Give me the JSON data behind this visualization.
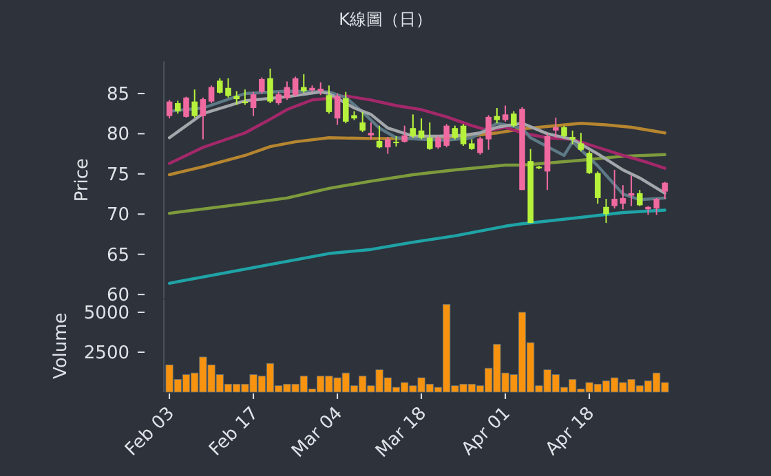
{
  "chart_data": [
    {
      "type": "candlestick",
      "title": "K線圖（日）",
      "ylabel": "Price",
      "categories": [
        null,
        null,
        null,
        null,
        null,
        null,
        null,
        null,
        null,
        null,
        null,
        null,
        null,
        null,
        null,
        null,
        null,
        null,
        null,
        null,
        null,
        null,
        null,
        null,
        null,
        null,
        null,
        null,
        null,
        null,
        null,
        null,
        null,
        null,
        null,
        null,
        null,
        null,
        null,
        null,
        null,
        null,
        null,
        null,
        null,
        null,
        null,
        null,
        null,
        null,
        null,
        null,
        null,
        null,
        null,
        null,
        null,
        null,
        null,
        null
      ],
      "ohlc": [
        [
          82.2,
          84.2,
          81.9,
          84.0
        ],
        [
          83.8,
          84.1,
          82.5,
          82.8
        ],
        [
          82.1,
          84.6,
          82.0,
          84.5
        ],
        [
          84.0,
          85.5,
          82.0,
          82.2
        ],
        [
          82.2,
          84.5,
          79.3,
          84.3
        ],
        [
          84.0,
          86.0,
          83.8,
          85.8
        ],
        [
          86.6,
          86.9,
          85.0,
          85.1
        ],
        [
          85.7,
          86.9,
          84.5,
          84.7
        ],
        [
          84.7,
          85.3,
          83.6,
          84.3
        ],
        [
          84.0,
          85.5,
          83.6,
          83.8
        ],
        [
          83.2,
          85.2,
          82.2,
          84.9
        ],
        [
          85.2,
          87.0,
          85.0,
          86.8
        ],
        [
          86.9,
          88.1,
          83.8,
          84.0
        ],
        [
          83.8,
          85.2,
          83.6,
          84.9
        ],
        [
          84.4,
          86.5,
          84.2,
          85.8
        ],
        [
          84.8,
          87.1,
          84.6,
          86.9
        ],
        [
          85.8,
          87.4,
          85.1,
          85.3
        ],
        [
          85.4,
          86.0,
          85.2,
          85.7
        ],
        [
          85.3,
          86.4,
          84.8,
          85.6
        ],
        [
          84.8,
          86.0,
          82.5,
          82.7
        ],
        [
          81.9,
          85.0,
          81.1,
          84.7
        ],
        [
          84.4,
          85.2,
          81.3,
          81.5
        ],
        [
          82.3,
          82.8,
          81.7,
          81.9
        ],
        [
          81.4,
          82.7,
          80.2,
          80.4
        ],
        [
          79.8,
          81.4,
          79.3,
          80.1
        ],
        [
          79.1,
          81.0,
          78.2,
          78.3
        ],
        [
          78.3,
          79.6,
          77.5,
          79.3
        ],
        [
          79.0,
          79.7,
          78.4,
          78.9
        ],
        [
          79.0,
          81.0,
          78.9,
          79.8
        ],
        [
          80.7,
          82.4,
          79.5,
          79.7
        ],
        [
          80.4,
          81.9,
          79.3,
          79.5
        ],
        [
          79.5,
          81.4,
          78.0,
          78.1
        ],
        [
          78.3,
          79.8,
          78.1,
          79.5
        ],
        [
          78.5,
          81.2,
          78.3,
          81.0
        ],
        [
          80.7,
          81.0,
          79.3,
          79.5
        ],
        [
          81.0,
          81.2,
          78.5,
          78.7
        ],
        [
          78.8,
          79.3,
          78.0,
          78.1
        ],
        [
          77.6,
          79.6,
          77.4,
          79.4
        ],
        [
          79.3,
          82.3,
          78.0,
          82.1
        ],
        [
          82.2,
          83.2,
          81.3,
          81.7
        ],
        [
          81.7,
          83.5,
          81.5,
          82.4
        ],
        [
          82.5,
          82.8,
          80.8,
          81.0
        ],
        [
          73.0,
          83.3,
          73.0,
          83.1
        ],
        [
          76.6,
          78.1,
          68.9,
          68.9
        ],
        [
          75.9,
          76.0,
          75.6,
          75.7
        ],
        [
          75.3,
          80.0,
          73.0,
          79.7
        ],
        [
          80.4,
          82.0,
          79.5,
          80.8
        ],
        [
          80.8,
          81.0,
          79.5,
          79.7
        ],
        [
          79.6,
          80.4,
          78.7,
          79.3
        ],
        [
          78.8,
          80.1,
          77.8,
          78.0
        ],
        [
          77.6,
          77.8,
          75.0,
          75.1
        ],
        [
          75.1,
          75.3,
          71.3,
          72.0
        ],
        [
          70.9,
          71.9,
          68.9,
          70.0
        ],
        [
          71.0,
          75.5,
          70.7,
          71.9
        ],
        [
          71.3,
          73.6,
          70.6,
          72.0
        ],
        [
          72.3,
          74.8,
          71.0,
          72.6
        ],
        [
          72.6,
          73.0,
          71.0,
          71.1
        ],
        [
          70.6,
          71.0,
          69.9,
          70.9
        ],
        [
          70.7,
          72.0,
          69.9,
          71.9
        ],
        [
          72.8,
          74.0,
          71.9,
          73.9
        ]
      ],
      "colors": [
        "#f06aa0",
        "#b6f23c",
        "#f06aa0",
        "#b6f23c",
        "#f06aa0",
        "#f06aa0",
        "#b6f23c",
        "#b6f23c",
        "#b6f23c",
        "#b6f23c",
        "#f06aa0",
        "#f06aa0",
        "#b6f23c",
        "#f06aa0",
        "#f06aa0",
        "#f06aa0",
        "#b6f23c",
        "#f06aa0",
        "#f06aa0",
        "#b6f23c",
        "#f06aa0",
        "#b6f23c",
        "#b6f23c",
        "#b6f23c",
        "#f06aa0",
        "#b6f23c",
        "#f06aa0",
        "#b6f23c",
        "#f06aa0",
        "#b6f23c",
        "#b6f23c",
        "#b6f23c",
        "#f06aa0",
        "#f06aa0",
        "#b6f23c",
        "#b6f23c",
        "#b6f23c",
        "#f06aa0",
        "#f06aa0",
        "#b6f23c",
        "#f06aa0",
        "#b6f23c",
        "#f06aa0",
        "#b6f23c",
        "#b6f23c",
        "#f06aa0",
        "#f06aa0",
        "#b6f23c",
        "#b6f23c",
        "#b6f23c",
        "#b6f23c",
        "#b6f23c",
        "#b6f23c",
        "#f06aa0",
        "#f06aa0",
        "#f06aa0",
        "#b6f23c",
        "#f06aa0",
        "#f06aa0",
        "#f06aa0"
      ],
      "ylim": [
        59.5,
        89
      ],
      "yticks": [
        60,
        65,
        70,
        75,
        80,
        85
      ],
      "tick_labels": "y",
      "series": [
        {
          "type": "line",
          "color": "#1fa3a6",
          "values": [
            61.4,
            null,
            null,
            null,
            null,
            null,
            null,
            null,
            null,
            null,
            null,
            null,
            null,
            null,
            null,
            null,
            null,
            null,
            null,
            65.1,
            null,
            null,
            null,
            null,
            65.6,
            null,
            null,
            null,
            null,
            66.5,
            null,
            null,
            null,
            null,
            67.3,
            null,
            null,
            null,
            null,
            null,
            68.5,
            null,
            68.8,
            null,
            null,
            null,
            null,
            null,
            null,
            69.6,
            null,
            null,
            null,
            null,
            70.2,
            null,
            null,
            null,
            null,
            70.5
          ]
        },
        {
          "type": "line",
          "color": "#7d9b3c",
          "values": [
            70.1,
            null,
            null,
            null,
            null,
            null,
            null,
            null,
            null,
            71.3,
            null,
            null,
            null,
            null,
            72.0,
            null,
            null,
            null,
            null,
            73.2,
            null,
            null,
            null,
            null,
            74.1,
            null,
            null,
            null,
            null,
            74.9,
            null,
            null,
            null,
            null,
            75.5,
            null,
            null,
            null,
            null,
            null,
            76.1,
            null,
            76.1,
            null,
            null,
            null,
            null,
            null,
            null,
            76.7,
            null,
            null,
            null,
            null,
            77.2,
            null,
            null,
            null,
            null,
            77.4
          ]
        },
        {
          "type": "line",
          "color": "#b5852f",
          "values": [
            74.9,
            null,
            null,
            null,
            75.9,
            null,
            null,
            null,
            null,
            77.3,
            null,
            null,
            78.4,
            null,
            null,
            79.0,
            null,
            null,
            null,
            79.5,
            null,
            null,
            null,
            null,
            79.4,
            null,
            null,
            null,
            null,
            79.4,
            null,
            null,
            null,
            null,
            79.5,
            null,
            null,
            null,
            null,
            80.1,
            null,
            null,
            80.6,
            null,
            null,
            null,
            81.0,
            null,
            null,
            81.3,
            null,
            null,
            81.1,
            null,
            null,
            80.8,
            null,
            null,
            null,
            80.1
          ]
        },
        {
          "type": "line",
          "color": "#a3286a",
          "values": [
            76.3,
            null,
            null,
            null,
            78.3,
            null,
            null,
            null,
            null,
            80.1,
            null,
            null,
            81.8,
            null,
            83.0,
            null,
            null,
            84.2,
            null,
            84.4,
            null,
            84.7,
            null,
            null,
            84.2,
            null,
            null,
            83.5,
            null,
            null,
            83.0,
            null,
            null,
            82.1,
            null,
            null,
            81.0,
            null,
            80.4,
            null,
            80.8,
            null,
            80.1,
            null,
            null,
            79.5,
            null,
            null,
            79.3,
            null,
            null,
            78.3,
            null,
            null,
            77.3,
            null,
            null,
            76.4,
            null,
            75.7
          ]
        },
        {
          "type": "line",
          "color": "#5d7a86",
          "values": [
            82.8,
            null,
            null,
            null,
            83.2,
            null,
            null,
            null,
            null,
            85.0,
            null,
            null,
            null,
            null,
            85.3,
            null,
            null,
            null,
            null,
            85.2,
            null,
            84.5,
            null,
            82.7,
            null,
            80.7,
            null,
            79.5,
            null,
            null,
            79.3,
            null,
            null,
            79.2,
            null,
            null,
            79.5,
            null,
            null,
            81.3,
            null,
            null,
            80.7,
            79.5,
            null,
            78.4,
            null,
            77.3,
            79.0,
            null,
            null,
            76.0,
            null,
            null,
            72.5,
            null,
            71.8,
            null,
            null,
            72.0
          ]
        },
        {
          "type": "line",
          "color": "#a3a7ab",
          "values": [
            79.5,
            null,
            null,
            null,
            82.5,
            null,
            null,
            null,
            null,
            84.1,
            null,
            null,
            null,
            null,
            84.6,
            null,
            null,
            null,
            85.2,
            85.0,
            null,
            null,
            83.2,
            null,
            82.4,
            null,
            80.7,
            null,
            null,
            79.7,
            null,
            null,
            79.7,
            null,
            null,
            79.8,
            null,
            80.1,
            null,
            80.8,
            null,
            null,
            81.3,
            null,
            null,
            80.0,
            null,
            null,
            79.3,
            null,
            null,
            77.5,
            null,
            null,
            75.5,
            null,
            74.5,
            null,
            null,
            72.6
          ]
        }
      ]
    },
    {
      "type": "bar",
      "ylabel": "Volume",
      "categories": [
        "Feb 03",
        null,
        null,
        null,
        null,
        null,
        null,
        null,
        null,
        null,
        "Feb 17",
        null,
        null,
        null,
        null,
        null,
        null,
        null,
        null,
        null,
        "Mar 04",
        null,
        null,
        null,
        null,
        null,
        null,
        null,
        null,
        null,
        "Mar 18",
        null,
        null,
        null,
        null,
        null,
        null,
        null,
        null,
        null,
        "Apr 01",
        null,
        null,
        null,
        null,
        null,
        null,
        null,
        null,
        null,
        "Apr 18",
        null,
        null,
        null,
        null,
        null,
        null,
        null,
        null,
        null
      ],
      "values": [
        1700,
        800,
        1100,
        1200,
        2200,
        1700,
        1100,
        500,
        500,
        500,
        1100,
        1000,
        1800,
        400,
        500,
        500,
        1000,
        200,
        1000,
        1000,
        900,
        1200,
        400,
        1000,
        400,
        1400,
        900,
        300,
        600,
        400,
        900,
        500,
        300,
        5500,
        400,
        500,
        500,
        400,
        1500,
        3000,
        1200,
        1100,
        5000,
        3100,
        400,
        1400,
        1100,
        300,
        800,
        200,
        600,
        500,
        700,
        900,
        600,
        800,
        400,
        700,
        1200,
        600
      ],
      "color": "#f7930f",
      "ylim": [
        0,
        5800
      ],
      "yticks": [
        2500,
        5000
      ]
    }
  ]
}
